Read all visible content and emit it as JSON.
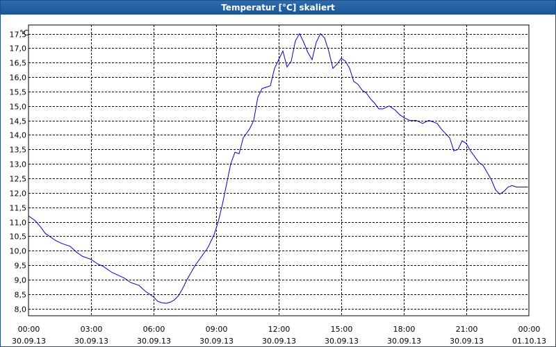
{
  "window": {
    "title": "Temperatur [°C] skaliert"
  },
  "colors": {
    "line": "#0000cc",
    "grid": "#000000",
    "background": "#ffffff",
    "titlebar": "#1f5b9e"
  },
  "chart_data": {
    "type": "line",
    "title": "Temperatur [°C] skaliert",
    "y_unit": "°C",
    "ylim": [
      7.75,
      17.8
    ],
    "y_ticks": [
      "8,0",
      "8,5",
      "9,0",
      "9,5",
      "10,0",
      "10,5",
      "11,0",
      "11,5",
      "12,0",
      "12,5",
      "13,0",
      "13,5",
      "14,0",
      "14,5",
      "15,0",
      "15,5",
      "16,0",
      "16,5",
      "17,0",
      "17,5"
    ],
    "y_tick_values": [
      8.0,
      8.5,
      9.0,
      9.5,
      10.0,
      10.5,
      11.0,
      11.5,
      12.0,
      12.5,
      13.0,
      13.5,
      14.0,
      14.5,
      15.0,
      15.5,
      16.0,
      16.5,
      17.0,
      17.5
    ],
    "x_ticks": [
      {
        "time": "00:00",
        "date": "30.09.13"
      },
      {
        "time": "03:00",
        "date": "30.09.13"
      },
      {
        "time": "06:00",
        "date": "30.09.13"
      },
      {
        "time": "09:00",
        "date": "30.09.13"
      },
      {
        "time": "12:00",
        "date": "30.09.13"
      },
      {
        "time": "15:00",
        "date": "30.09.13"
      },
      {
        "time": "18:00",
        "date": "30.09.13"
      },
      {
        "time": "21:00",
        "date": "30.09.13"
      },
      {
        "time": "00:00",
        "date": "01.10.13"
      }
    ],
    "x_tick_hours": [
      0,
      3,
      6,
      9,
      12,
      15,
      18,
      21,
      24
    ],
    "xlim_hours": [
      0,
      24
    ],
    "grid": true,
    "series": [
      {
        "x": [
          0,
          0.3,
          0.6,
          0.8,
          1.0,
          1.3,
          1.6,
          2.0,
          2.3,
          2.6,
          3.0,
          3.3,
          3.6,
          4.0,
          4.3,
          4.6,
          4.9,
          5.3,
          5.6,
          6.0,
          6.2,
          6.4,
          6.6,
          6.8,
          7.0,
          7.2,
          7.4,
          7.6,
          7.8,
          8.0,
          8.3,
          8.6,
          8.9,
          9.1,
          9.3,
          9.5,
          9.7,
          9.9,
          10.1,
          10.3,
          10.6,
          10.8,
          11.0,
          11.2,
          11.4,
          11.6,
          11.8,
          12.0,
          12.2,
          12.4,
          12.6,
          12.8,
          13.0,
          13.2,
          13.4,
          13.6,
          13.8,
          14.0,
          14.2,
          14.4,
          14.6,
          14.8,
          15.0,
          15.2,
          15.4,
          15.6,
          15.8,
          16.0,
          16.2,
          16.4,
          16.6,
          16.8,
          17.0,
          17.3,
          17.6,
          17.8,
          18.0,
          18.3,
          18.6,
          18.9,
          19.2,
          19.4,
          19.6,
          19.8,
          20.0,
          20.2,
          20.4,
          20.6,
          20.8,
          21.0,
          21.2,
          21.4,
          21.6,
          21.8,
          22.0,
          22.2,
          22.4,
          22.6,
          22.8,
          23.0,
          23.2,
          23.4,
          23.6,
          23.8,
          23.95
        ],
        "y": [
          11.2,
          11.05,
          10.8,
          10.6,
          10.5,
          10.35,
          10.25,
          10.15,
          9.95,
          9.8,
          9.7,
          9.55,
          9.45,
          9.25,
          9.15,
          9.05,
          8.9,
          8.8,
          8.6,
          8.4,
          8.25,
          8.2,
          8.18,
          8.22,
          8.3,
          8.45,
          8.7,
          9.0,
          9.25,
          9.5,
          9.8,
          10.1,
          10.55,
          11.0,
          11.6,
          12.3,
          13.0,
          13.4,
          13.35,
          13.9,
          14.2,
          14.5,
          15.3,
          15.6,
          15.65,
          15.7,
          16.3,
          16.6,
          16.9,
          16.35,
          16.55,
          17.25,
          17.5,
          17.2,
          16.85,
          16.6,
          17.2,
          17.5,
          17.35,
          16.9,
          16.3,
          16.45,
          16.65,
          16.55,
          16.3,
          15.85,
          15.75,
          15.55,
          15.45,
          15.25,
          15.1,
          14.9,
          14.9,
          15.0,
          14.85,
          14.7,
          14.6,
          14.5,
          14.5,
          14.4,
          14.5,
          14.45,
          14.4,
          14.2,
          14.05,
          13.9,
          13.45,
          13.5,
          13.8,
          13.7,
          13.45,
          13.25,
          13.05,
          12.95,
          12.7,
          12.45,
          12.1,
          11.95,
          12.05,
          12.2,
          12.25,
          12.2,
          12.2,
          12.2,
          12.2
        ]
      }
    ]
  }
}
